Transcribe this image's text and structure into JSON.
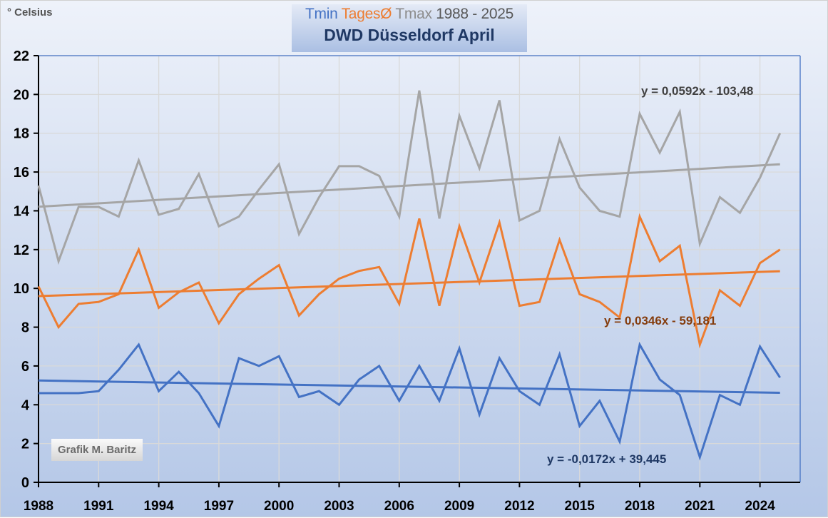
{
  "chart_data": {
    "type": "line",
    "title": {
      "tmin_label": "Tmin",
      "tmean_label": "TagesØ",
      "tmax_label": "Tmax",
      "range": "1988 - 2025",
      "subtitle": "DWD Düsseldorf April"
    },
    "ylabel": "° Celsius",
    "xlabel": "",
    "ylim": [
      0,
      22
    ],
    "yticks": [
      0,
      2,
      4,
      6,
      8,
      10,
      12,
      14,
      16,
      18,
      20,
      22
    ],
    "xlim": [
      1988,
      2026
    ],
    "xticks": [
      1988,
      1991,
      1994,
      1997,
      2000,
      2003,
      2006,
      2009,
      2012,
      2015,
      2018,
      2021,
      2024
    ],
    "grid": true,
    "x": [
      1988,
      1989,
      1990,
      1991,
      1992,
      1993,
      1994,
      1995,
      1996,
      1997,
      1998,
      1999,
      2000,
      2001,
      2002,
      2003,
      2004,
      2005,
      2006,
      2007,
      2008,
      2009,
      2010,
      2011,
      2012,
      2013,
      2014,
      2015,
      2016,
      2017,
      2018,
      2019,
      2020,
      2021,
      2022,
      2023,
      2024,
      2025
    ],
    "series": [
      {
        "name": "Tmax",
        "color": "#a5a5a5",
        "values": [
          15.3,
          11.4,
          14.2,
          14.2,
          13.7,
          16.6,
          13.8,
          14.1,
          15.9,
          13.2,
          13.7,
          15.1,
          16.4,
          12.8,
          14.7,
          16.3,
          16.3,
          15.8,
          13.7,
          20.2,
          13.6,
          18.9,
          16.2,
          19.7,
          13.5,
          14.0,
          17.7,
          15.2,
          14.0,
          13.7,
          19.0,
          17.0,
          19.1,
          12.3,
          14.7,
          13.9,
          15.7,
          18.0
        ],
        "trend": {
          "slope": 0.0592,
          "intercept": -103.48,
          "label": "y = 0,0592x - 103,48",
          "label_color": "#404040"
        }
      },
      {
        "name": "TagesØ",
        "color": "#ed7d31",
        "values": [
          10.1,
          8.0,
          9.2,
          9.3,
          9.7,
          12.0,
          9.0,
          9.8,
          10.3,
          8.2,
          9.7,
          10.5,
          11.2,
          8.6,
          9.7,
          10.5,
          10.9,
          11.1,
          9.2,
          13.6,
          9.1,
          13.2,
          10.3,
          13.4,
          9.1,
          9.3,
          12.5,
          9.7,
          9.3,
          8.5,
          13.7,
          11.4,
          12.2,
          7.1,
          9.9,
          9.1,
          11.3,
          12.0
        ],
        "trend": {
          "slope": 0.0346,
          "intercept": -59.181,
          "label": "y = 0,0346x - 59,181",
          "label_color": "#843c0c"
        }
      },
      {
        "name": "Tmin",
        "color": "#4472c4",
        "values": [
          4.6,
          4.6,
          4.6,
          4.7,
          5.8,
          7.1,
          4.7,
          5.7,
          4.6,
          2.9,
          6.4,
          6.0,
          6.5,
          4.4,
          4.7,
          4.0,
          5.3,
          6.0,
          4.2,
          6.0,
          4.2,
          6.9,
          3.5,
          6.4,
          4.7,
          4.0,
          6.6,
          2.9,
          4.2,
          2.1,
          7.1,
          5.3,
          4.5,
          1.3,
          4.5,
          4.0,
          7.0,
          5.4
        ],
        "trend": {
          "slope": -0.0172,
          "intercept": 39.445,
          "label": "y = -0,0172x + 39,445",
          "label_color": "#1f3864"
        }
      }
    ],
    "legend": "none",
    "annotations": [
      "Grafik M. Baritz"
    ]
  }
}
